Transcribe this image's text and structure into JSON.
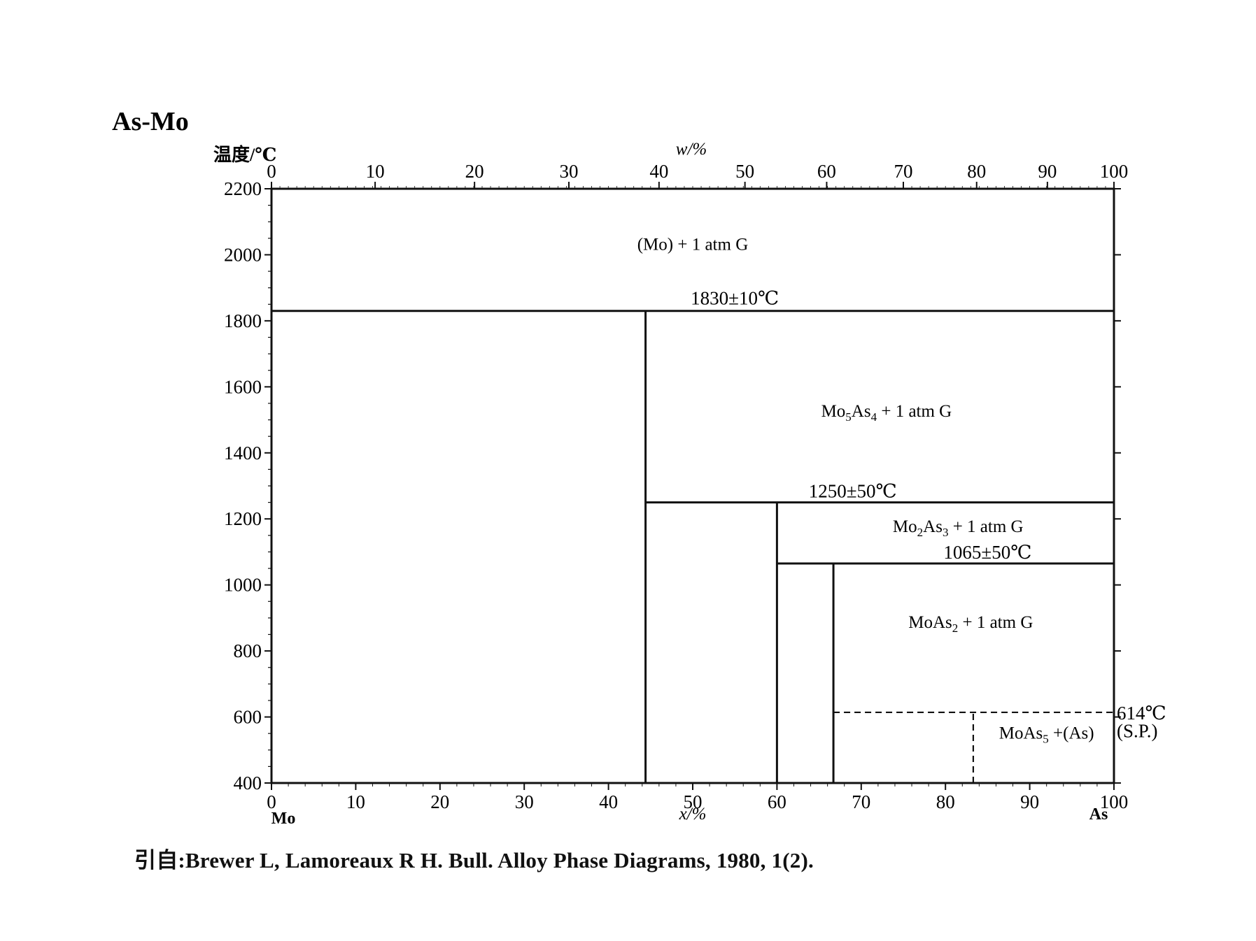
{
  "title": "As-Mo",
  "y_axis": {
    "label": "温度/℃",
    "min": 400,
    "max": 2200,
    "ticks": [
      400,
      600,
      800,
      1000,
      1200,
      1400,
      1600,
      1800,
      2000,
      2200
    ]
  },
  "x_axis_bottom": {
    "label": "x/%",
    "min": 0,
    "max": 100,
    "ticks": [
      0,
      10,
      20,
      30,
      40,
      50,
      60,
      70,
      80,
      90,
      100
    ],
    "left_element": "Mo",
    "right_element": "As"
  },
  "x_axis_top": {
    "label": "w/%",
    "ticks_w": [
      0,
      10,
      20,
      30,
      40,
      50,
      60,
      70,
      80,
      90,
      100
    ],
    "ticks_x_position": [
      0,
      12.3,
      24.1,
      35.3,
      46.0,
      56.2,
      65.9,
      75.0,
      83.7,
      92.1,
      100
    ]
  },
  "lines": [
    {
      "type": "isotherm",
      "t": 1830,
      "x1": 0,
      "x2": 100,
      "style": "solid"
    },
    {
      "type": "vertical",
      "x": 44.4,
      "t1": 400,
      "t2": 1830,
      "style": "solid"
    },
    {
      "type": "isotherm",
      "t": 1250,
      "x1": 44.4,
      "x2": 100,
      "style": "solid"
    },
    {
      "type": "vertical",
      "x": 60,
      "t1": 400,
      "t2": 1250,
      "style": "solid"
    },
    {
      "type": "isotherm",
      "t": 1065,
      "x1": 60,
      "x2": 100,
      "style": "solid"
    },
    {
      "type": "vertical",
      "x": 66.7,
      "t1": 400,
      "t2": 1065,
      "style": "solid"
    },
    {
      "type": "isotherm",
      "t": 614,
      "x1": 66.7,
      "x2": 100,
      "style": "dashed"
    },
    {
      "type": "vertical",
      "x": 83.3,
      "t1": 400,
      "t2": 614,
      "style": "dashed"
    }
  ],
  "region_labels": [
    {
      "text": "(Mo) + 1 atm G",
      "x": 50,
      "t": 2015
    },
    {
      "text": "Mo5As4 + 1 atm G",
      "x": 73,
      "t": 1510
    },
    {
      "text": "Mo2As3 + 1 atm G",
      "x": 81.5,
      "t": 1160
    },
    {
      "text": "MoAs2 + 1 atm G",
      "x": 83,
      "t": 870
    },
    {
      "text": "MoAs5 +(As)",
      "x": 92,
      "t": 535
    }
  ],
  "temperature_labels": [
    {
      "text": "1830±10℃",
      "x": 55,
      "t": 1850
    },
    {
      "text": "1250±50℃",
      "x": 69,
      "t": 1265
    },
    {
      "text": "1065±50℃",
      "x": 85,
      "t": 1080
    },
    {
      "text": "614℃",
      "x": 102,
      "t": 614
    },
    {
      "text": "(S.P.)",
      "x": 102,
      "t": 560
    }
  ],
  "source": "引自:Brewer L, Lamoreaux R H. Bull. Alloy Phase Diagrams, 1980, 1(2)."
}
